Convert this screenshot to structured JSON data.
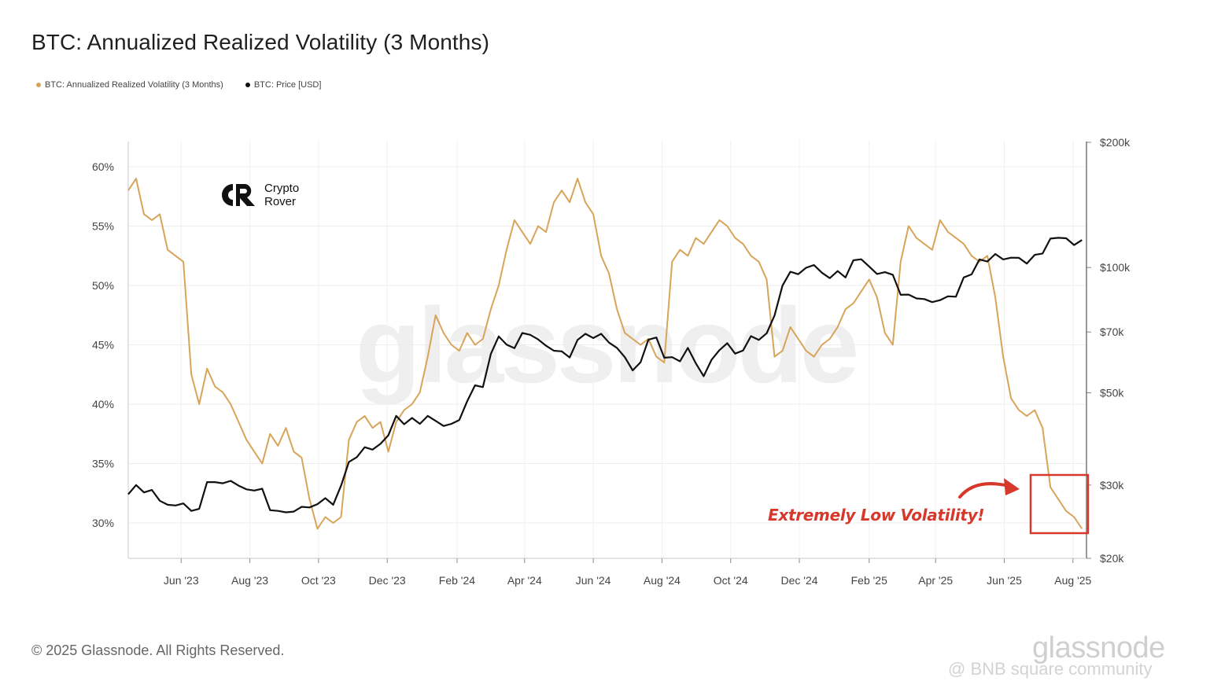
{
  "header": {
    "title": "BTC: Annualized Realized Volatility (3 Months)"
  },
  "legend": [
    {
      "label": "BTC: Annualized Realized Volatility (3 Months)",
      "color": "#d8a45a"
    },
    {
      "label": "BTC: Price [USD]",
      "color": "#111111"
    }
  ],
  "logo": {
    "line1": "Crypto",
    "line2": "Rover",
    "icon": "crypto-rover-logo-icon"
  },
  "watermark": {
    "center": "glassnode",
    "footer": "glassnode",
    "community": "@ BNB square community"
  },
  "footer": {
    "copyright": "© 2025 Glassnode. All Rights Reserved."
  },
  "annotation": {
    "text": "Extremely Low Volatility!",
    "color": "#d6382b"
  },
  "chart_data": {
    "type": "line",
    "x_ticks": [
      "Jun '23",
      "Aug '23",
      "Oct '23",
      "Dec '23",
      "Feb '24",
      "Apr '24",
      "Jun '24",
      "Aug '24",
      "Oct '24",
      "Dec '24",
      "Feb '25",
      "Apr '25",
      "Jun '25",
      "Aug '25"
    ],
    "y_left": {
      "ticks": [
        "60%",
        "55%",
        "50%",
        "45%",
        "40%",
        "35%",
        "30%"
      ],
      "range": [
        27,
        62
      ]
    },
    "y_right": {
      "ticks": [
        "$200k",
        "$100k",
        "$70k",
        "$50k",
        "$30k",
        "$20k"
      ],
      "scale": "log",
      "range": [
        20000,
        200000
      ]
    },
    "grid": true,
    "series": [
      {
        "name": "BTC: Annualized Realized Volatility (3 Months)",
        "axis": "left",
        "color": "#d8a45a",
        "points": [
          [
            "2023-04-15",
            58.0
          ],
          [
            "2023-04-22",
            59.0
          ],
          [
            "2023-04-29",
            56.0
          ],
          [
            "2023-05-06",
            55.5
          ],
          [
            "2023-05-13",
            56.0
          ],
          [
            "2023-05-20",
            53.0
          ],
          [
            "2023-05-27",
            52.5
          ],
          [
            "2023-06-03",
            52.0
          ],
          [
            "2023-06-10",
            42.5
          ],
          [
            "2023-06-17",
            40.0
          ],
          [
            "2023-06-24",
            43.0
          ],
          [
            "2023-07-01",
            41.5
          ],
          [
            "2023-07-08",
            41.0
          ],
          [
            "2023-07-15",
            40.0
          ],
          [
            "2023-07-22",
            38.5
          ],
          [
            "2023-07-29",
            37.0
          ],
          [
            "2023-08-05",
            36.0
          ],
          [
            "2023-08-12",
            35.0
          ],
          [
            "2023-08-19",
            37.5
          ],
          [
            "2023-08-26",
            36.5
          ],
          [
            "2023-09-02",
            38.0
          ],
          [
            "2023-09-09",
            36.0
          ],
          [
            "2023-09-16",
            35.5
          ],
          [
            "2023-09-23",
            32.0
          ],
          [
            "2023-09-30",
            29.5
          ],
          [
            "2023-10-07",
            30.5
          ],
          [
            "2023-10-14",
            30.0
          ],
          [
            "2023-10-21",
            30.5
          ],
          [
            "2023-10-28",
            37.0
          ],
          [
            "2023-11-04",
            38.5
          ],
          [
            "2023-11-11",
            39.0
          ],
          [
            "2023-11-18",
            38.0
          ],
          [
            "2023-11-25",
            38.5
          ],
          [
            "2023-12-02",
            36.0
          ],
          [
            "2023-12-09",
            38.5
          ],
          [
            "2023-12-16",
            39.5
          ],
          [
            "2023-12-23",
            40.0
          ],
          [
            "2023-12-30",
            41.0
          ],
          [
            "2024-01-06",
            44.0
          ],
          [
            "2024-01-13",
            47.5
          ],
          [
            "2024-01-20",
            46.0
          ],
          [
            "2024-01-27",
            45.0
          ],
          [
            "2024-02-03",
            44.5
          ],
          [
            "2024-02-10",
            46.0
          ],
          [
            "2024-02-17",
            45.0
          ],
          [
            "2024-02-24",
            45.5
          ],
          [
            "2024-03-02",
            48.0
          ],
          [
            "2024-03-09",
            50.0
          ],
          [
            "2024-03-16",
            53.0
          ],
          [
            "2024-03-23",
            55.5
          ],
          [
            "2024-03-30",
            54.5
          ],
          [
            "2024-04-06",
            53.5
          ],
          [
            "2024-04-13",
            55.0
          ],
          [
            "2024-04-20",
            54.5
          ],
          [
            "2024-04-27",
            57.0
          ],
          [
            "2024-05-04",
            58.0
          ],
          [
            "2024-05-11",
            57.0
          ],
          [
            "2024-05-18",
            59.0
          ],
          [
            "2024-05-25",
            57.0
          ],
          [
            "2024-06-01",
            56.0
          ],
          [
            "2024-06-08",
            52.5
          ],
          [
            "2024-06-15",
            51.0
          ],
          [
            "2024-06-22",
            48.0
          ],
          [
            "2024-06-29",
            46.0
          ],
          [
            "2024-07-06",
            45.5
          ],
          [
            "2024-07-13",
            45.0
          ],
          [
            "2024-07-20",
            45.5
          ],
          [
            "2024-07-27",
            44.0
          ],
          [
            "2024-08-03",
            43.5
          ],
          [
            "2024-08-10",
            52.0
          ],
          [
            "2024-08-17",
            53.0
          ],
          [
            "2024-08-24",
            52.5
          ],
          [
            "2024-08-31",
            54.0
          ],
          [
            "2024-09-07",
            53.5
          ],
          [
            "2024-09-14",
            54.5
          ],
          [
            "2024-09-21",
            55.5
          ],
          [
            "2024-09-28",
            55.0
          ],
          [
            "2024-10-05",
            54.0
          ],
          [
            "2024-10-12",
            53.5
          ],
          [
            "2024-10-19",
            52.5
          ],
          [
            "2024-10-26",
            52.0
          ],
          [
            "2024-11-02",
            50.5
          ],
          [
            "2024-11-09",
            44.0
          ],
          [
            "2024-11-16",
            44.5
          ],
          [
            "2024-11-23",
            46.5
          ],
          [
            "2024-11-30",
            45.5
          ],
          [
            "2024-12-07",
            44.5
          ],
          [
            "2024-12-14",
            44.0
          ],
          [
            "2024-12-21",
            45.0
          ],
          [
            "2024-12-28",
            45.5
          ],
          [
            "2025-01-04",
            46.5
          ],
          [
            "2025-01-11",
            48.0
          ],
          [
            "2025-01-18",
            48.5
          ],
          [
            "2025-01-25",
            49.5
          ],
          [
            "2025-02-01",
            50.5
          ],
          [
            "2025-02-08",
            49.0
          ],
          [
            "2025-02-15",
            46.0
          ],
          [
            "2025-02-22",
            45.0
          ],
          [
            "2025-03-01",
            52.0
          ],
          [
            "2025-03-08",
            55.0
          ],
          [
            "2025-03-15",
            54.0
          ],
          [
            "2025-03-22",
            53.5
          ],
          [
            "2025-03-29",
            53.0
          ],
          [
            "2025-04-05",
            55.5
          ],
          [
            "2025-04-12",
            54.5
          ],
          [
            "2025-04-19",
            54.0
          ],
          [
            "2025-04-26",
            53.5
          ],
          [
            "2025-05-03",
            52.5
          ],
          [
            "2025-05-10",
            52.0
          ],
          [
            "2025-05-17",
            52.5
          ],
          [
            "2025-05-24",
            49.0
          ],
          [
            "2025-05-31",
            44.0
          ],
          [
            "2025-06-07",
            40.5
          ],
          [
            "2025-06-14",
            39.5
          ],
          [
            "2025-06-21",
            39.0
          ],
          [
            "2025-06-28",
            39.5
          ],
          [
            "2025-07-05",
            38.0
          ],
          [
            "2025-07-12",
            33.0
          ],
          [
            "2025-07-19",
            32.0
          ],
          [
            "2025-07-26",
            31.0
          ],
          [
            "2025-08-02",
            30.5
          ],
          [
            "2025-08-09",
            29.5
          ]
        ]
      },
      {
        "name": "BTC: Price [USD]",
        "axis": "right",
        "color": "#111111",
        "points": [
          [
            "2023-04-15",
            28500
          ],
          [
            "2023-04-22",
            30000
          ],
          [
            "2023-04-29",
            28800
          ],
          [
            "2023-05-06",
            29200
          ],
          [
            "2023-05-13",
            27500
          ],
          [
            "2023-05-20",
            26900
          ],
          [
            "2023-05-27",
            26800
          ],
          [
            "2023-06-03",
            27100
          ],
          [
            "2023-06-10",
            26000
          ],
          [
            "2023-06-17",
            26300
          ],
          [
            "2023-06-24",
            30500
          ],
          [
            "2023-07-01",
            30500
          ],
          [
            "2023-07-08",
            30300
          ],
          [
            "2023-07-15",
            30700
          ],
          [
            "2023-07-22",
            29900
          ],
          [
            "2023-07-29",
            29300
          ],
          [
            "2023-08-05",
            29100
          ],
          [
            "2023-08-12",
            29400
          ],
          [
            "2023-08-19",
            26100
          ],
          [
            "2023-08-26",
            26000
          ],
          [
            "2023-09-02",
            25800
          ],
          [
            "2023-09-09",
            25900
          ],
          [
            "2023-09-16",
            26600
          ],
          [
            "2023-09-23",
            26500
          ],
          [
            "2023-09-30",
            27000
          ],
          [
            "2023-10-07",
            27900
          ],
          [
            "2023-10-14",
            26900
          ],
          [
            "2023-10-21",
            29900
          ],
          [
            "2023-10-28",
            34100
          ],
          [
            "2023-11-04",
            35000
          ],
          [
            "2023-11-11",
            37000
          ],
          [
            "2023-11-18",
            36500
          ],
          [
            "2023-11-25",
            37700
          ],
          [
            "2023-12-02",
            39500
          ],
          [
            "2023-12-09",
            44000
          ],
          [
            "2023-12-16",
            42000
          ],
          [
            "2023-12-23",
            43500
          ],
          [
            "2023-12-30",
            42100
          ],
          [
            "2024-01-06",
            44000
          ],
          [
            "2024-01-13",
            42800
          ],
          [
            "2024-01-20",
            41600
          ],
          [
            "2024-01-27",
            42100
          ],
          [
            "2024-02-03",
            43000
          ],
          [
            "2024-02-10",
            47700
          ],
          [
            "2024-02-17",
            52100
          ],
          [
            "2024-02-24",
            51600
          ],
          [
            "2024-03-02",
            62000
          ],
          [
            "2024-03-09",
            68300
          ],
          [
            "2024-03-16",
            65300
          ],
          [
            "2024-03-23",
            64000
          ],
          [
            "2024-03-30",
            69600
          ],
          [
            "2024-04-06",
            68900
          ],
          [
            "2024-04-13",
            67200
          ],
          [
            "2024-04-20",
            64900
          ],
          [
            "2024-04-27",
            63100
          ],
          [
            "2024-05-04",
            62900
          ],
          [
            "2024-05-11",
            60800
          ],
          [
            "2024-05-18",
            67000
          ],
          [
            "2024-05-25",
            69300
          ],
          [
            "2024-06-01",
            67700
          ],
          [
            "2024-06-08",
            69300
          ],
          [
            "2024-06-15",
            66000
          ],
          [
            "2024-06-22",
            64100
          ],
          [
            "2024-06-29",
            60900
          ],
          [
            "2024-07-06",
            56600
          ],
          [
            "2024-07-13",
            59200
          ],
          [
            "2024-07-20",
            67100
          ],
          [
            "2024-07-27",
            67900
          ],
          [
            "2024-08-03",
            60700
          ],
          [
            "2024-08-10",
            60900
          ],
          [
            "2024-08-17",
            59500
          ],
          [
            "2024-08-24",
            64100
          ],
          [
            "2024-08-31",
            58900
          ],
          [
            "2024-09-07",
            54800
          ],
          [
            "2024-09-14",
            60000
          ],
          [
            "2024-09-21",
            63300
          ],
          [
            "2024-09-28",
            65800
          ],
          [
            "2024-10-05",
            62100
          ],
          [
            "2024-10-12",
            63200
          ],
          [
            "2024-10-19",
            68400
          ],
          [
            "2024-10-26",
            67000
          ],
          [
            "2024-11-02",
            69500
          ],
          [
            "2024-11-09",
            76700
          ],
          [
            "2024-11-16",
            90500
          ],
          [
            "2024-11-23",
            97700
          ],
          [
            "2024-11-30",
            96400
          ],
          [
            "2024-12-07",
            99900
          ],
          [
            "2024-12-14",
            101400
          ],
          [
            "2024-12-21",
            97200
          ],
          [
            "2024-12-28",
            94300
          ],
          [
            "2025-01-04",
            98100
          ],
          [
            "2025-01-11",
            94700
          ],
          [
            "2025-01-18",
            104100
          ],
          [
            "2025-01-25",
            104700
          ],
          [
            "2025-02-01",
            100600
          ],
          [
            "2025-02-08",
            96500
          ],
          [
            "2025-02-15",
            97500
          ],
          [
            "2025-02-22",
            96100
          ],
          [
            "2025-03-01",
            86000
          ],
          [
            "2025-03-08",
            86100
          ],
          [
            "2025-03-15",
            84300
          ],
          [
            "2025-03-22",
            84000
          ],
          [
            "2025-03-29",
            82600
          ],
          [
            "2025-04-05",
            83500
          ],
          [
            "2025-04-12",
            85300
          ],
          [
            "2025-04-19",
            85100
          ],
          [
            "2025-04-26",
            94700
          ],
          [
            "2025-05-03",
            96300
          ],
          [
            "2025-05-10",
            104600
          ],
          [
            "2025-05-17",
            103400
          ],
          [
            "2025-05-24",
            107800
          ],
          [
            "2025-05-31",
            104600
          ],
          [
            "2025-06-07",
            105600
          ],
          [
            "2025-06-14",
            105500
          ],
          [
            "2025-06-21",
            102200
          ],
          [
            "2025-06-28",
            107300
          ],
          [
            "2025-07-05",
            108100
          ],
          [
            "2025-07-12",
            117400
          ],
          [
            "2025-07-19",
            117900
          ],
          [
            "2025-07-26",
            117600
          ],
          [
            "2025-08-02",
            113300
          ],
          [
            "2025-08-09",
            116500
          ]
        ]
      }
    ]
  }
}
